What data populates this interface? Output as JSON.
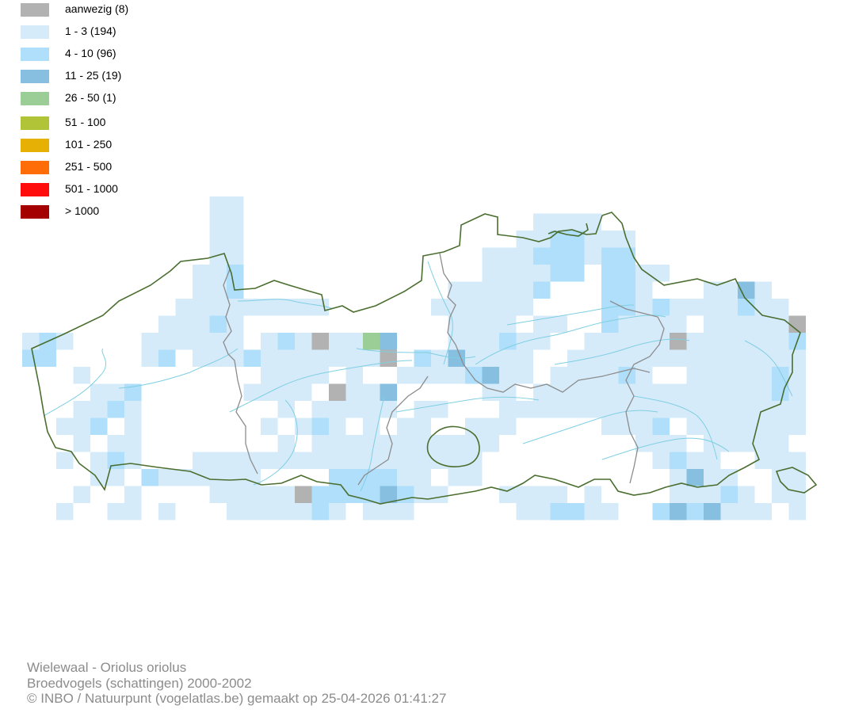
{
  "legend": {
    "items": [
      {
        "label": "aanwezig (8)",
        "color": "#b2b2b2"
      },
      {
        "label": "1 - 3 (194)",
        "color": "#d6ebfa"
      },
      {
        "label": "4 - 10 (96)",
        "color": "#afdffa"
      },
      {
        "label": "11 - 25 (19)",
        "color": "#86bfe0"
      },
      {
        "label": "26 - 50 (1)",
        "color": "#9bcd97"
      },
      {
        "label": "51 - 100",
        "color": "#b1c438"
      },
      {
        "label": "101 - 250",
        "color": "#e6b104"
      },
      {
        "label": "251 - 500",
        "color": "#ff6d08"
      },
      {
        "label": "501 - 1000",
        "color": "#ff0d0d"
      },
      {
        "label": "> 1000",
        "color": "#a50000"
      }
    ]
  },
  "map": {
    "region_border_color": "#4a6e2f",
    "province_border_color": "#8c8c8c",
    "river_color": "#7fcfe2"
  },
  "caption": {
    "species": "Wielewaal - Oriolus oriolus",
    "dataset": "Broedvogels (schattingen) 2000-2002",
    "credit": "© INBO / Natuurpunt (vogelatlas.be) gemaakt op 25-04-2026 01:41:27"
  }
}
